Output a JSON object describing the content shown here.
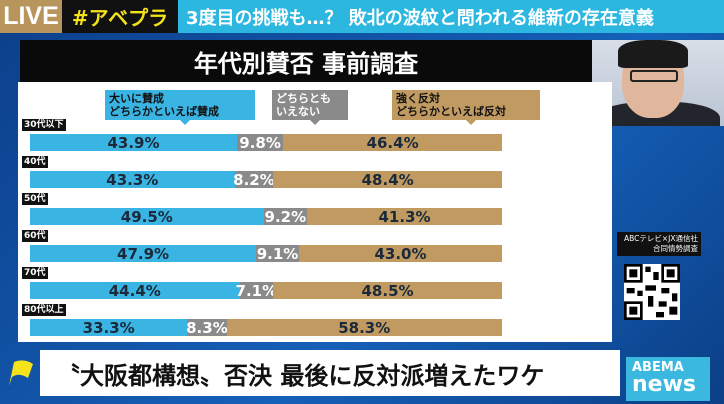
{
  "top": {
    "live": "LIVE",
    "hashtag": "#アベプラ",
    "headline": "3度目の挑戦も…？ 敗北の波紋と問われる維新の存在意義"
  },
  "chart_data": {
    "type": "bar",
    "stacked": true,
    "orientation": "horizontal",
    "title": "年代別賛否 事前調査",
    "categories": [
      "30代以下",
      "40代",
      "50代",
      "60代",
      "70代",
      "80代以上"
    ],
    "series": [
      {
        "name": "大いに賛成\nどちらかといえば賛成",
        "color": "#39b4e3",
        "values": [
          43.9,
          43.3,
          49.5,
          47.9,
          44.4,
          33.3
        ]
      },
      {
        "name": "どちらとも\nいえない",
        "color": "#8a8a8a",
        "values": [
          9.8,
          8.2,
          9.2,
          9.1,
          7.1,
          8.3
        ]
      },
      {
        "name": "強く反対\nどちらかといえば反対",
        "color": "#c19a62",
        "values": [
          46.4,
          48.4,
          41.3,
          43.0,
          48.5,
          58.3
        ]
      }
    ],
    "labels": [
      [
        "43.9%",
        "9.8%",
        "46.4%"
      ],
      [
        "43.3%",
        "8.2%",
        "48.4%"
      ],
      [
        "49.5%",
        "9.2%",
        "41.3%"
      ],
      [
        "47.9%",
        "9.1%",
        "43.0%"
      ],
      [
        "44.4%",
        "7.1%",
        "48.5%"
      ],
      [
        "33.3%",
        "8.3%",
        "58.3%"
      ]
    ],
    "xlim": [
      0,
      100
    ]
  },
  "source": "ABCテレビ×JX通信社\n合同情勢調査",
  "caption": "〝大阪都構想〟否決 最後に反対派増えたワケ",
  "logo": {
    "line1": "ABEMA",
    "line2": "news"
  }
}
